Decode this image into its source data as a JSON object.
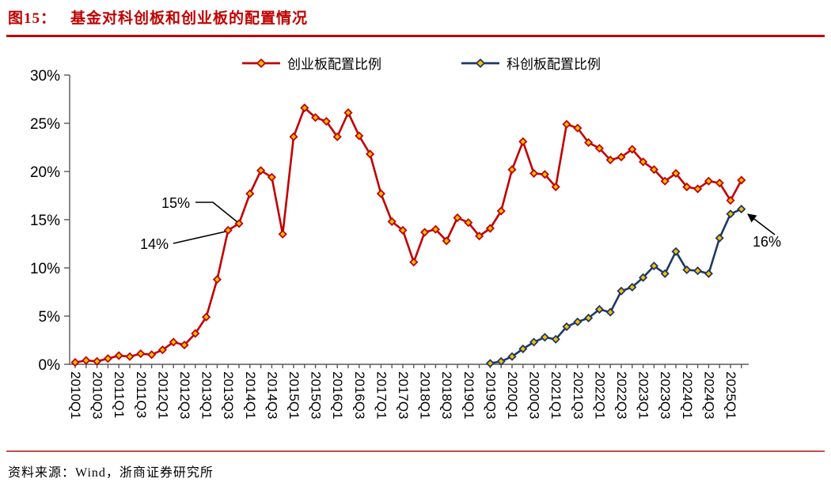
{
  "figure": {
    "label": "图15："
  },
  "source": {
    "text": "资料来源：Wind，浙商证券研究所"
  },
  "colors": {
    "chuangyeban_red": "#C00000",
    "kechuangban_blue": "#1F3864",
    "marker_fill": "#FFC000",
    "title_red": "#C00000",
    "divider_top": "#C00000",
    "divider_bottom": "#C0504D",
    "axis_gray": "#595959"
  },
  "chart_data": {
    "type": "line",
    "title": "基金对科创板和创业板的配置情况",
    "xlabel": "",
    "ylabel": "",
    "ylim": [
      0,
      30
    ],
    "y_ticks": [
      "0%",
      "5%",
      "10%",
      "15%",
      "20%",
      "25%",
      "30%"
    ],
    "grid": false,
    "legend_position": "top",
    "marker": "diamond",
    "marker_fill": "#FFC000",
    "x_range": [
      "2010Q1",
      "2025Q2"
    ],
    "x_tick_labels": [
      "2010Q1",
      "2010Q3",
      "2011Q1",
      "2011Q3",
      "2012Q1",
      "2012Q3",
      "2013Q1",
      "2013Q3",
      "2014Q1",
      "2014Q3",
      "2015Q1",
      "2015Q3",
      "2016Q1",
      "2016Q3",
      "2017Q1",
      "2017Q3",
      "2018Q1",
      "2018Q3",
      "2019Q1",
      "2019Q3",
      "2020Q1",
      "2020Q3",
      "2021Q1",
      "2021Q3",
      "2022Q1",
      "2022Q3",
      "2023Q1",
      "2023Q3",
      "2024Q1",
      "2024Q3",
      "2025Q1"
    ],
    "series": [
      {
        "name": "创业板配置比例",
        "color": "#C00000",
        "start_quarter": "2010Q1",
        "start_index": 0,
        "values": [
          0.2,
          0.4,
          0.3,
          0.6,
          0.9,
          0.8,
          1.1,
          1.0,
          1.5,
          2.3,
          2.0,
          3.2,
          4.9,
          8.8,
          13.9,
          14.6,
          17.7,
          20.1,
          19.4,
          13.5,
          23.6,
          26.6,
          25.6,
          25.2,
          23.6,
          26.1,
          23.7,
          21.8,
          17.7,
          14.8,
          13.9,
          10.6,
          13.7,
          14.0,
          12.8,
          15.2,
          14.7,
          13.3,
          14.1,
          15.9,
          20.2,
          23.1,
          19.8,
          19.7,
          18.4,
          24.9,
          24.5,
          23.0,
          22.4,
          21.2,
          21.5,
          22.3,
          21.0,
          20.2,
          19.0,
          19.8,
          18.4,
          18.2,
          19.0,
          18.8,
          17.0,
          19.1
        ]
      },
      {
        "name": "科创板配置比例",
        "color": "#1F3864",
        "start_quarter": "2019Q3",
        "start_index": 38,
        "values": [
          0.1,
          0.3,
          0.8,
          1.6,
          2.3,
          2.8,
          2.6,
          3.9,
          4.4,
          4.8,
          5.7,
          5.4,
          7.6,
          8.0,
          9.0,
          10.2,
          9.4,
          11.7,
          9.8,
          9.7,
          9.4,
          13.1,
          15.6,
          16.1
        ]
      }
    ],
    "annotations": [
      {
        "text": "15%",
        "series": "创业板配置比例",
        "quarter": "2013Q4"
      },
      {
        "text": "14%",
        "series": "创业板配置比例",
        "quarter": "2013Q3"
      },
      {
        "text": "16%",
        "series": "科创板配置比例",
        "quarter": "2025Q2"
      }
    ]
  }
}
